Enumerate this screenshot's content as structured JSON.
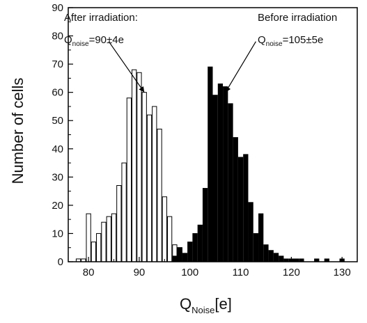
{
  "chart_data": {
    "type": "bar",
    "xlabel_main": "Q",
    "xlabel_sub": "Noise",
    "xlabel_tail": "[e]",
    "ylabel": "Number of cells",
    "xlim": [
      76,
      133
    ],
    "ylim": [
      0,
      90
    ],
    "x_ticks": [
      80,
      90,
      100,
      110,
      120,
      130
    ],
    "y_ticks": [
      0,
      10,
      20,
      30,
      40,
      50,
      60,
      70,
      80,
      90
    ],
    "bin_width": 1,
    "series": [
      {
        "style": "hollow",
        "fill": "#ffffff",
        "stroke": "#000000",
        "x": [
          78,
          79,
          80,
          81,
          82,
          83,
          84,
          85,
          86,
          87,
          88,
          89,
          90,
          91,
          92,
          93,
          94,
          95,
          96,
          97,
          98
        ],
        "values": [
          1,
          1,
          17,
          7,
          10,
          14,
          16,
          17,
          27,
          35,
          58,
          68,
          67,
          60,
          52,
          55,
          47,
          23,
          16,
          6,
          5
        ]
      },
      {
        "style": "filled",
        "fill": "#000000",
        "stroke": "#000000",
        "x": [
          97,
          98,
          99,
          100,
          101,
          102,
          103,
          104,
          105,
          106,
          107,
          108,
          109,
          110,
          111,
          112,
          113,
          114,
          115,
          116,
          117,
          118,
          119,
          120,
          121,
          122,
          125,
          127,
          130
        ],
        "values": [
          2,
          5,
          3,
          7,
          10,
          13,
          26,
          69,
          59,
          63,
          62,
          56,
          44,
          37,
          38,
          21,
          10,
          17,
          6,
          4,
          3,
          2,
          1,
          1,
          1,
          1,
          1,
          1,
          1
        ]
      }
    ],
    "annotations": [
      {
        "line1": "After irradiation:",
        "q_main": "Q",
        "q_sub": "noise",
        "q_value": "=90±4e",
        "arrow_from_data": [
          84,
          78
        ],
        "arrow_to_data": [
          91,
          60
        ]
      },
      {
        "line1": "Before irradiation",
        "q_main": "Q",
        "q_sub": "noise",
        "q_value": "=105±5e",
        "arrow_from_data": [
          113,
          78
        ],
        "arrow_to_data": [
          107,
          60
        ]
      }
    ]
  }
}
